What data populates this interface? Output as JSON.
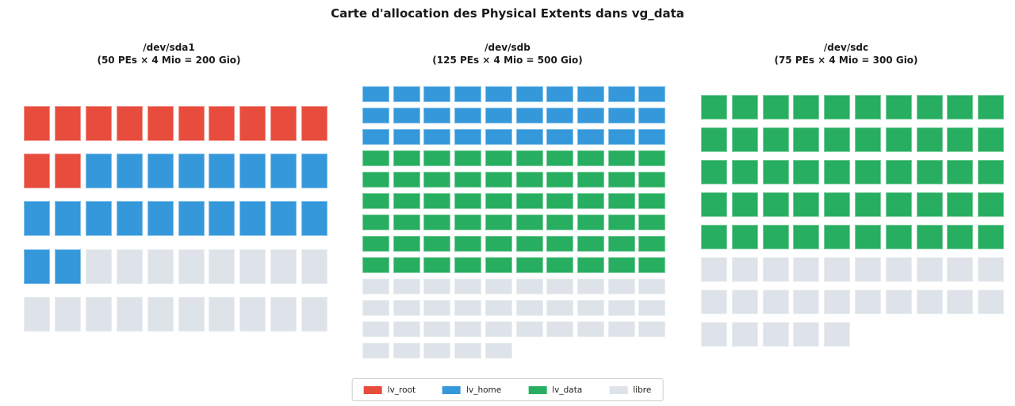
{
  "title": "Carte d'allocation des Physical Extents dans vg_data",
  "chart_data": {
    "type": "waffle",
    "title": "Carte d'allocation des Physical Extents dans vg_data",
    "columns_per_row": 10,
    "pe_size_mio": 4,
    "legend_position": "bottom-center",
    "legend": [
      {
        "label": "lv_root",
        "color": "#e74c3c"
      },
      {
        "label": "lv_home",
        "color": "#3498db"
      },
      {
        "label": "lv_data",
        "color": "#27ae60"
      },
      {
        "label": "libre",
        "color": "#dde3e8"
      }
    ],
    "panels": [
      {
        "device": "/dev/sda1",
        "subtitle": "(50 PEs × 4 Mio = 200 Gio)",
        "total_pes": 50,
        "capacity_gio": 200,
        "rows": 5,
        "segments": [
          {
            "lv": "lv_root",
            "count": 12
          },
          {
            "lv": "lv_home",
            "count": 20
          },
          {
            "lv": "libre",
            "count": 18
          }
        ]
      },
      {
        "device": "/dev/sdb",
        "subtitle": "(125 PEs × 4 Mio = 500 Gio)",
        "total_pes": 125,
        "capacity_gio": 500,
        "rows": 13,
        "segments": [
          {
            "lv": "lv_home",
            "count": 30
          },
          {
            "lv": "lv_data",
            "count": 60
          },
          {
            "lv": "libre",
            "count": 35
          }
        ]
      },
      {
        "device": "/dev/sdc",
        "subtitle": "(75 PEs × 4 Mio = 300 Gio)",
        "total_pes": 75,
        "capacity_gio": 300,
        "rows": 8,
        "segments": [
          {
            "lv": "lv_data",
            "count": 50
          },
          {
            "lv": "libre",
            "count": 25
          }
        ]
      }
    ]
  }
}
